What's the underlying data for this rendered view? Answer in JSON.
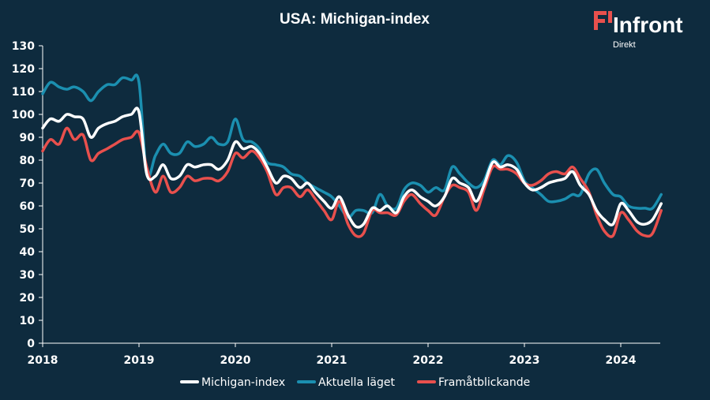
{
  "chart_data": {
    "type": "line",
    "title": "USA: Michigan-index",
    "xlabel": "",
    "ylabel": "",
    "ylim": [
      0,
      130
    ],
    "yticks": [
      0,
      10,
      20,
      30,
      40,
      50,
      60,
      70,
      80,
      90,
      100,
      110,
      120,
      130
    ],
    "xlim": [
      2018,
      2024.42
    ],
    "xticks": [
      "2018",
      "2019",
      "2020",
      "2021",
      "2022",
      "2023",
      "2024"
    ],
    "grid": false,
    "legend_position": "bottom",
    "series": [
      {
        "name": "Michigan-index",
        "color": "#ffffff",
        "x": [
          2018.0,
          2018.08,
          2018.17,
          2018.25,
          2018.33,
          2018.42,
          2018.5,
          2018.58,
          2018.67,
          2018.75,
          2018.83,
          2018.92,
          2019.0,
          2019.08,
          2019.17,
          2019.25,
          2019.33,
          2019.42,
          2019.5,
          2019.58,
          2019.67,
          2019.75,
          2019.83,
          2019.92,
          2020.0,
          2020.08,
          2020.17,
          2020.25,
          2020.33,
          2020.42,
          2020.5,
          2020.58,
          2020.67,
          2020.75,
          2020.83,
          2020.92,
          2021.0,
          2021.08,
          2021.17,
          2021.25,
          2021.33,
          2021.42,
          2021.5,
          2021.58,
          2021.67,
          2021.75,
          2021.83,
          2021.92,
          2022.0,
          2022.08,
          2022.17,
          2022.25,
          2022.33,
          2022.42,
          2022.5,
          2022.58,
          2022.67,
          2022.75,
          2022.83,
          2022.92,
          2023.0,
          2023.08,
          2023.17,
          2023.25,
          2023.33,
          2023.42,
          2023.5,
          2023.58,
          2023.67,
          2023.75,
          2023.83,
          2023.92,
          2024.0,
          2024.08,
          2024.17,
          2024.25,
          2024.33,
          2024.42
        ],
        "values": [
          94,
          98,
          97,
          100,
          99,
          98,
          90,
          94,
          96,
          97,
          99,
          100,
          101,
          74,
          73,
          78,
          72,
          73,
          78,
          77,
          78,
          78,
          76,
          80,
          88,
          85,
          86,
          83,
          77,
          70,
          73,
          72,
          68,
          70,
          66,
          62,
          59,
          64,
          56,
          51,
          52,
          59,
          58,
          60,
          57,
          64,
          67,
          64,
          62,
          60,
          64,
          72,
          70,
          68,
          62,
          69,
          79,
          77,
          78,
          76,
          70,
          67,
          68,
          70,
          71,
          72,
          75,
          69,
          65,
          58,
          54,
          52,
          61,
          58,
          53,
          52,
          54,
          61
        ]
      },
      {
        "name": "Aktuella läget",
        "color": "#1b8fb0",
        "x": [
          2018.0,
          2018.08,
          2018.17,
          2018.25,
          2018.33,
          2018.42,
          2018.5,
          2018.58,
          2018.67,
          2018.75,
          2018.83,
          2018.92,
          2019.0,
          2019.08,
          2019.17,
          2019.25,
          2019.33,
          2019.42,
          2019.5,
          2019.58,
          2019.67,
          2019.75,
          2019.83,
          2019.92,
          2020.0,
          2020.08,
          2020.17,
          2020.25,
          2020.33,
          2020.42,
          2020.5,
          2020.58,
          2020.67,
          2020.75,
          2020.83,
          2020.92,
          2021.0,
          2021.08,
          2021.17,
          2021.25,
          2021.33,
          2021.42,
          2021.5,
          2021.58,
          2021.67,
          2021.75,
          2021.83,
          2021.92,
          2022.0,
          2022.08,
          2022.17,
          2022.25,
          2022.33,
          2022.42,
          2022.5,
          2022.58,
          2022.67,
          2022.75,
          2022.83,
          2022.92,
          2023.0,
          2023.08,
          2023.17,
          2023.25,
          2023.33,
          2023.42,
          2023.5,
          2023.58,
          2023.67,
          2023.75,
          2023.83,
          2023.92,
          2024.0,
          2024.08,
          2024.17,
          2024.25,
          2024.33,
          2024.42
        ],
        "values": [
          109,
          114,
          112,
          111,
          112,
          110,
          106,
          110,
          113,
          113,
          116,
          115,
          114,
          74,
          82,
          87,
          83,
          83,
          88,
          86,
          87,
          90,
          87,
          88,
          98,
          89,
          88,
          85,
          79,
          78,
          77,
          74,
          73,
          70,
          68,
          66,
          64,
          60,
          55,
          58,
          58,
          57,
          65,
          60,
          59,
          67,
          70,
          69,
          66,
          68,
          67,
          77,
          74,
          70,
          68,
          71,
          80,
          78,
          82,
          79,
          71,
          68,
          65,
          62,
          62,
          63,
          65,
          65,
          74,
          76,
          70,
          65,
          64,
          60,
          59,
          59,
          59,
          65
        ]
      },
      {
        "name": "Framåtblickande",
        "color": "#e8504d",
        "x": [
          2018.0,
          2018.08,
          2018.17,
          2018.25,
          2018.33,
          2018.42,
          2018.5,
          2018.58,
          2018.67,
          2018.75,
          2018.83,
          2018.92,
          2019.0,
          2019.08,
          2019.17,
          2019.25,
          2019.33,
          2019.42,
          2019.5,
          2019.58,
          2019.67,
          2019.75,
          2019.83,
          2019.92,
          2020.0,
          2020.08,
          2020.17,
          2020.25,
          2020.33,
          2020.42,
          2020.5,
          2020.58,
          2020.67,
          2020.75,
          2020.83,
          2020.92,
          2021.0,
          2021.08,
          2021.17,
          2021.25,
          2021.33,
          2021.42,
          2021.5,
          2021.58,
          2021.67,
          2021.75,
          2021.83,
          2021.92,
          2022.0,
          2022.08,
          2022.17,
          2022.25,
          2022.33,
          2022.42,
          2022.5,
          2022.58,
          2022.67,
          2022.75,
          2022.83,
          2022.92,
          2023.0,
          2023.08,
          2023.17,
          2023.25,
          2023.33,
          2023.42,
          2023.5,
          2023.58,
          2023.67,
          2023.75,
          2023.83,
          2023.92,
          2024.0,
          2024.08,
          2024.17,
          2024.25,
          2024.33,
          2024.42
        ],
        "values": [
          84,
          89,
          87,
          94,
          89,
          91,
          80,
          83,
          85,
          87,
          89,
          90,
          92,
          77,
          66,
          73,
          66,
          68,
          73,
          71,
          72,
          72,
          71,
          75,
          83,
          81,
          84,
          81,
          75,
          65,
          68,
          68,
          64,
          67,
          63,
          58,
          54,
          62,
          52,
          47,
          48,
          58,
          57,
          57,
          56,
          62,
          65,
          61,
          58,
          56,
          64,
          69,
          68,
          66,
          58,
          67,
          77,
          76,
          76,
          74,
          70,
          69,
          71,
          74,
          75,
          74,
          77,
          72,
          66,
          56,
          49,
          47,
          57,
          54,
          49,
          47,
          48,
          58
        ]
      }
    ]
  },
  "brand": {
    "name": "Infront",
    "sub": "Direkt"
  },
  "colors": {
    "background": "#0e2b3e",
    "axis": "#ffffff",
    "logo_accent": "#e8504d"
  }
}
